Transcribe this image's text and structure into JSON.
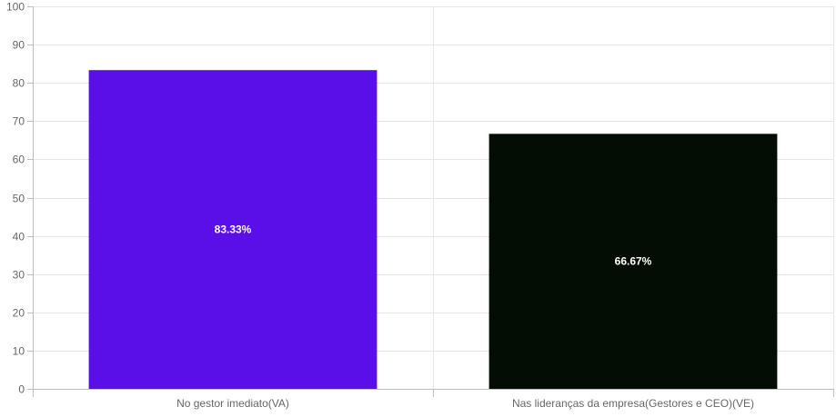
{
  "chart_data": {
    "type": "bar",
    "categories": [
      "No gestor imediato(VA)",
      "Nas lideranças da empresa(Gestores e CEO)(VE)"
    ],
    "values": [
      83.33,
      66.67
    ],
    "data_labels": [
      "83.33%",
      "66.67%"
    ],
    "colors": [
      "#5a0fe8",
      "#030d03"
    ],
    "ylim": [
      0,
      100
    ],
    "y_ticks": [
      0,
      10,
      20,
      30,
      40,
      50,
      60,
      70,
      80,
      90,
      100
    ],
    "grid": true,
    "legend": "none",
    "title": "",
    "xlabel": "",
    "ylabel": ""
  }
}
